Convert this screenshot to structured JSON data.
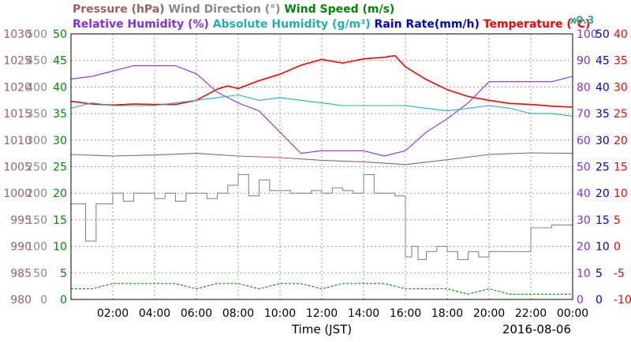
{
  "chart_data": {
    "type": "line",
    "date": "2016-08-06",
    "xlabel": "Time (JST)",
    "x_range": [
      "00:00",
      "24:00"
    ],
    "x_ticks": [
      "02:00",
      "04:00",
      "06:00",
      "08:00",
      "10:00",
      "12:00",
      "14:00",
      "16:00",
      "18:00",
      "20:00",
      "22:00",
      "00:00"
    ],
    "grid": "dashed",
    "legend_row1": [
      {
        "text": "Pressure (hPa)",
        "color": "#a06060"
      },
      {
        "text": "Wind Direction (°)",
        "color": "#888888"
      },
      {
        "text": "Wind Speed (m/s)",
        "color": "#008800"
      }
    ],
    "legend_row2": [
      {
        "text": "Relative Humidity (%)",
        "color": "#8a2be2"
      },
      {
        "text": "Absolute Humidity (g/m³)",
        "color": "#20b0b0"
      },
      {
        "text": "Rain Rate(mm/h)",
        "color": "#0000cc"
      },
      {
        "text": "Temperature (°C)",
        "color": "#ff0000"
      }
    ],
    "abs_humidity_scale": "x0.3",
    "axes": [
      {
        "name": "Pressure",
        "unit": "hPa",
        "color": "#a06060",
        "side": "left",
        "range": [
          980,
          1030
        ],
        "ticks": [
          980,
          985,
          990,
          995,
          1000,
          1005,
          1010,
          1015,
          1020,
          1025,
          1030
        ]
      },
      {
        "name": "Wind Direction",
        "unit": "°",
        "color": "#888888",
        "side": "left",
        "range": [
          0,
          500
        ],
        "ticks": [
          0,
          50,
          100,
          150,
          200,
          250,
          300,
          350,
          400,
          450,
          500
        ]
      },
      {
        "name": "Wind Speed",
        "unit": "m/s",
        "color": "#008800",
        "side": "left",
        "range": [
          0,
          50
        ],
        "ticks": [
          0,
          5,
          10,
          15,
          20,
          25,
          30,
          35,
          40,
          45,
          50
        ]
      },
      {
        "name": "Relative Humidity",
        "unit": "%",
        "color": "#8a2be2",
        "side": "right",
        "range": [
          0,
          100
        ],
        "ticks": [
          0,
          10,
          20,
          30,
          40,
          50,
          60,
          70,
          80,
          90,
          100
        ]
      },
      {
        "name": "Rain Rate",
        "unit": "mm/h",
        "color": "#0000cc",
        "side": "right",
        "range": [
          0,
          50
        ],
        "ticks": [
          0,
          5,
          10,
          15,
          20,
          25,
          30,
          35,
          40,
          45,
          50
        ]
      },
      {
        "name": "Temperature",
        "unit": "°C",
        "color": "#ff0000",
        "side": "right",
        "range": [
          -10,
          40
        ],
        "ticks": [
          -10,
          -5,
          0,
          5,
          10,
          15,
          20,
          25,
          30,
          35,
          40
        ]
      }
    ],
    "series": [
      {
        "name": "Temperature",
        "color": "#ff0000",
        "axis": "Temperature",
        "x": [
          0,
          1,
          2,
          3,
          4,
          5,
          6,
          7,
          7.5,
          8,
          9,
          10,
          11,
          12,
          13,
          14,
          15,
          15.5,
          16,
          17,
          18,
          19,
          20,
          21,
          22,
          23,
          24
        ],
        "values": [
          27.3,
          26.8,
          26.6,
          26.8,
          26.7,
          26.7,
          27.5,
          29.6,
          30.2,
          29.7,
          31.2,
          32.4,
          34.1,
          35.2,
          34.5,
          35.3,
          35.6,
          35.9,
          33.8,
          31.4,
          29.5,
          28.2,
          27.5,
          26.9,
          26.7,
          26.4,
          26.2
        ]
      },
      {
        "name": "Relative Humidity",
        "color": "#8a2be2",
        "axis": "Relative Humidity",
        "x": [
          0,
          1,
          2,
          3,
          4,
          5,
          6,
          7,
          8,
          9,
          10,
          11,
          12,
          13,
          14,
          15,
          16,
          17,
          18,
          19,
          20,
          21,
          22,
          23,
          24
        ],
        "values": [
          83,
          84,
          86,
          88,
          88,
          88,
          85,
          78,
          74,
          71,
          63,
          55,
          56,
          56,
          56,
          54,
          56,
          63,
          68,
          74,
          82,
          82,
          82,
          82,
          84
        ]
      },
      {
        "name": "Absolute Humidity",
        "color": "#20b0b0",
        "axis": "Relative Humidity",
        "x": [
          0,
          1,
          2,
          3,
          4,
          5,
          6,
          7,
          8,
          9,
          10,
          11,
          12,
          13,
          14,
          15,
          16,
          17,
          18,
          19,
          20,
          21,
          22,
          23,
          24
        ],
        "values": [
          72,
          74,
          73,
          73,
          73,
          74,
          75,
          76,
          77,
          75,
          76,
          75,
          74,
          73,
          73,
          73,
          73,
          72,
          71,
          72,
          73,
          72,
          70,
          70,
          69
        ]
      },
      {
        "name": "Pressure",
        "color": "#a06060",
        "axis": "Pressure",
        "x": [
          0,
          2,
          4,
          6,
          8,
          10,
          12,
          14,
          16,
          18,
          20,
          22,
          24
        ],
        "values": [
          1007.3,
          1007.0,
          1007.2,
          1007.5,
          1007.0,
          1006.7,
          1006.2,
          1005.9,
          1005.4,
          1006.3,
          1007.3,
          1007.6,
          1007.5
        ]
      },
      {
        "name": "Wind Direction",
        "color": "#888888",
        "axis": "Wind Direction",
        "x": [
          0,
          0.4,
          0.7,
          1.2,
          1.6,
          2.0,
          2.5,
          3.0,
          3.5,
          4.0,
          4.5,
          5.0,
          5.5,
          6.0,
          6.5,
          7.0,
          7.5,
          8.0,
          8.5,
          9.0,
          9.5,
          10.0,
          10.5,
          11.0,
          11.5,
          12.0,
          12.5,
          13.0,
          13.5,
          14.0,
          14.5,
          15.0,
          15.5,
          16.0,
          16.3,
          16.6,
          17.0,
          17.5,
          18.0,
          18.5,
          19.0,
          19.5,
          20.0,
          20.5,
          21.0,
          21.5,
          22.0,
          23.0,
          24.0
        ],
        "values": [
          180,
          180,
          110,
          180,
          180,
          200,
          185,
          200,
          200,
          190,
          200,
          185,
          200,
          200,
          190,
          200,
          215,
          235,
          195,
          225,
          205,
          205,
          200,
          200,
          205,
          200,
          210,
          205,
          200,
          235,
          200,
          200,
          195,
          80,
          100,
          75,
          90,
          100,
          90,
          75,
          90,
          80,
          90,
          90,
          90,
          90,
          135,
          140,
          140
        ]
      },
      {
        "name": "Wind Speed",
        "color": "#008800",
        "axis": "Wind Speed",
        "x": [
          0,
          1,
          2,
          3,
          4,
          5,
          6,
          7,
          8,
          9,
          10,
          11,
          12,
          13,
          14,
          15,
          16,
          17,
          18,
          19,
          20,
          21,
          22,
          23,
          24
        ],
        "values": [
          2,
          2,
          3,
          3,
          3,
          3,
          2,
          3,
          3,
          2,
          3,
          3,
          2,
          3,
          3,
          3,
          2,
          2,
          2,
          1,
          2,
          1,
          1,
          1,
          1
        ]
      },
      {
        "name": "Rain Rate",
        "color": "#0000cc",
        "axis": "Rain Rate",
        "x": [
          0,
          24
        ],
        "values": [
          0,
          0
        ]
      }
    ]
  }
}
